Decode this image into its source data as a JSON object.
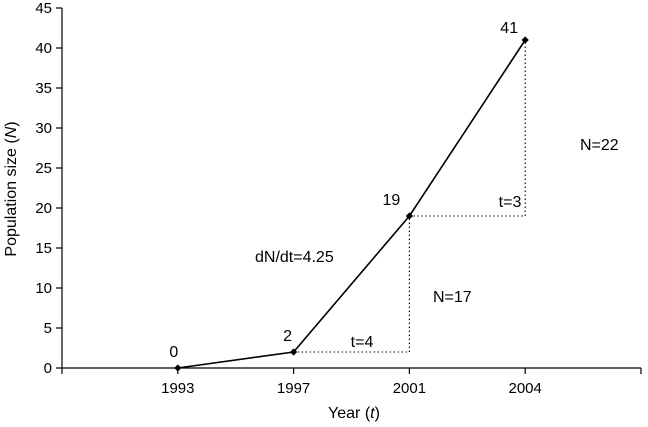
{
  "chart_data": {
    "type": "line",
    "xlabel": "Year",
    "xlabel_var": "t",
    "ylabel": "Population size",
    "ylabel_var": "N",
    "ylim": [
      0,
      45
    ],
    "yticks": [
      0,
      5,
      10,
      15,
      20,
      25,
      30,
      35,
      40,
      45
    ],
    "categories": [
      "1993",
      "1997",
      "2001",
      "2004"
    ],
    "x_positions": [
      1,
      2,
      3,
      4
    ],
    "xlim": [
      0,
      5
    ],
    "series": [
      {
        "values": [
          0,
          2,
          19,
          41
        ]
      }
    ],
    "data_labels": [
      "0",
      "2",
      "19",
      "41"
    ],
    "annotations": {
      "slope_label": "dN/dt=4.25",
      "segment_1": {
        "delta_t_label": "t=4",
        "delta_n_label": "N=17",
        "from_index": 1,
        "to_index": 2
      },
      "segment_2": {
        "delta_t_label": "t=3",
        "delta_n_label": "N=22",
        "from_index": 2,
        "to_index": 3
      }
    },
    "grid": false,
    "legend": "none"
  }
}
